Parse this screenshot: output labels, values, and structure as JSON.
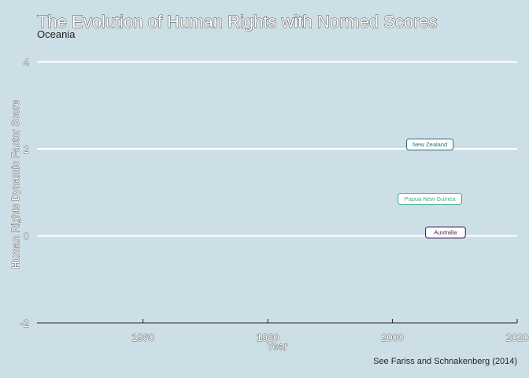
{
  "chart_data": {
    "type": "scatter",
    "title": "The Evolution of Human Rights with Normed Scores",
    "subtitle": "Oceania",
    "xlabel": "Year",
    "ylabel": "Human Rights Dynamic Factor Score",
    "caption": "See Fariss and Schnakenberg (2014)",
    "xlim": [
      1943,
      2020
    ],
    "ylim": [
      -2,
      4.3
    ],
    "x_ticks": [
      1960,
      1980,
      2000,
      2020
    ],
    "y_ticks": [
      -2,
      0,
      2,
      4
    ],
    "grid": "horizontal",
    "colors": {
      "background": "#cddfe6",
      "grid": "#ffffff"
    },
    "labels": [
      {
        "name": "New Zealand",
        "x": 2006,
        "y": 2.1,
        "color": "#2e6e73"
      },
      {
        "name": "Papua New Guinea",
        "x": 2006,
        "y": 0.85,
        "color": "#3fae8f"
      },
      {
        "name": "Australia",
        "x": 2008.5,
        "y": 0.08,
        "color": "#3b1a52"
      }
    ]
  }
}
